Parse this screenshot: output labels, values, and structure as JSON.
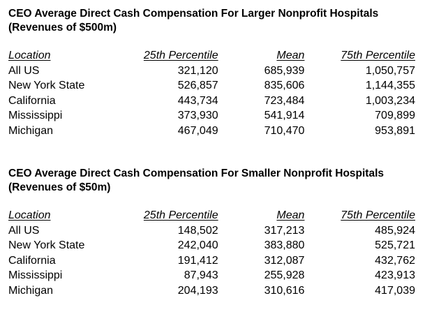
{
  "tables": [
    {
      "title": "CEO Average Direct Cash Compensation For Larger Nonprofit Hospitals (Revenues of $500m)",
      "columns": [
        "Location",
        "25th Percentile",
        "Mean",
        "75th Percentile"
      ],
      "rows": [
        {
          "location": "All US",
          "p25": "321,120",
          "mean": "685,939",
          "p75": "1,050,757"
        },
        {
          "location": "New York State",
          "p25": "526,857",
          "mean": "835,606",
          "p75": "1,144,355"
        },
        {
          "location": "California",
          "p25": "443,734",
          "mean": "723,484",
          "p75": "1,003,234"
        },
        {
          "location": "Mississippi",
          "p25": "373,930",
          "mean": "541,914",
          "p75": "709,899"
        },
        {
          "location": "Michigan",
          "p25": "467,049",
          "mean": "710,470",
          "p75": "953,891"
        }
      ]
    },
    {
      "title": "CEO Average Direct Cash Compensation For Smaller Nonprofit Hospitals (Revenues of $50m)",
      "columns": [
        "Location",
        "25th Percentile",
        "Mean",
        "75th Percentile"
      ],
      "rows": [
        {
          "location": "All US",
          "p25": "148,502",
          "mean": "317,213",
          "p75": "485,924"
        },
        {
          "location": "New York State",
          "p25": "242,040",
          "mean": "383,880",
          "p75": "525,721"
        },
        {
          "location": "California",
          "p25": "191,412",
          "mean": "312,087",
          "p75": "432,762"
        },
        {
          "location": "Mississippi",
          "p25": "87,943",
          "mean": "255,928",
          "p75": "423,913"
        },
        {
          "location": "Michigan",
          "p25": "204,193",
          "mean": "310,616",
          "p75": "417,039"
        }
      ]
    }
  ]
}
